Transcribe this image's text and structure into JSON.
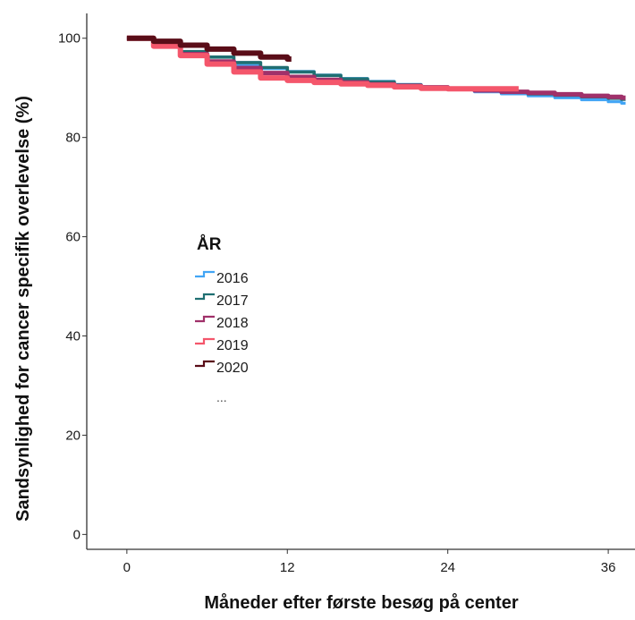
{
  "chart_data": {
    "type": "line",
    "title": "",
    "xlabel": "Måneder efter første besøg på center",
    "ylabel": "Sandsynlighed for cancer specifik overlevelse (%)",
    "xlim": [
      -3,
      38
    ],
    "ylim": [
      -3,
      105
    ],
    "xticks": [
      0,
      12,
      24,
      36
    ],
    "yticks": [
      0,
      20,
      40,
      60,
      80,
      100
    ],
    "grid": false,
    "legend": {
      "title": "ÅR",
      "placement": "left-middle",
      "more": "..."
    },
    "series": [
      {
        "name": "2016",
        "color": "#42a5f5",
        "x": [
          0,
          2,
          4,
          6,
          8,
          10,
          12,
          14,
          16,
          18,
          20,
          22,
          24,
          26,
          28,
          30,
          32,
          34,
          36,
          37
        ],
        "y": [
          100,
          98.2,
          96.5,
          95.3,
          94.5,
          93.9,
          93.3,
          92.6,
          91.9,
          91.3,
          90.7,
          90.1,
          89.6,
          89.2,
          88.8,
          88.4,
          88.0,
          87.6,
          87.2,
          86.9
        ]
      },
      {
        "name": "2017",
        "color": "#1f6f72",
        "x": [
          0,
          2,
          4,
          6,
          8,
          10,
          12,
          14,
          16,
          18,
          20,
          22,
          24,
          26,
          28,
          30,
          32,
          34,
          36,
          37
        ],
        "y": [
          100,
          98.6,
          97.3,
          96.2,
          95.1,
          94.1,
          93.2,
          92.5,
          91.8,
          91.2,
          90.6,
          90.1,
          89.7,
          89.4,
          89.1,
          88.8,
          88.5,
          88.2,
          87.9,
          87.7
        ]
      },
      {
        "name": "2018",
        "color": "#a0316a",
        "x": [
          0,
          2,
          4,
          6,
          8,
          10,
          12,
          14,
          16,
          18,
          20,
          22,
          24,
          26,
          28,
          30,
          32,
          34,
          36,
          37
        ],
        "y": [
          100,
          98.4,
          96.8,
          95.3,
          94.0,
          93.0,
          92.2,
          91.6,
          91.1,
          90.7,
          90.4,
          90.1,
          89.8,
          89.5,
          89.2,
          89.0,
          88.7,
          88.4,
          88.2,
          88.0
        ]
      },
      {
        "name": "2019",
        "color": "#f4566b",
        "x": [
          0,
          2,
          4,
          6,
          8,
          10,
          12,
          14,
          16,
          18,
          20,
          22,
          24,
          26,
          28,
          29
        ],
        "y": [
          100,
          98.4,
          96.5,
          94.8,
          93.2,
          92.0,
          91.5,
          91.1,
          90.8,
          90.5,
          90.2,
          89.9,
          89.8,
          89.8,
          89.8,
          89.8
        ]
      },
      {
        "name": "2020",
        "color": "#5a0d18",
        "x": [
          0,
          2,
          4,
          6,
          8,
          10,
          12
        ],
        "y": [
          100,
          99.4,
          98.6,
          97.8,
          97.0,
          96.2,
          95.8
        ]
      }
    ]
  }
}
